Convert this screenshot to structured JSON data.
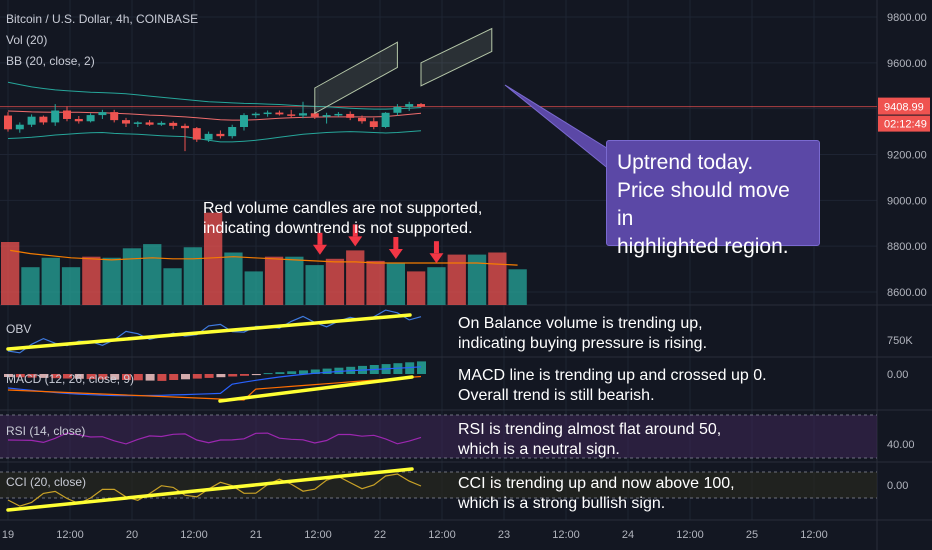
{
  "header": {
    "symbol": "Bitcoin / U.S. Dollar, 4h, COINBASE",
    "vol": "Vol (20)",
    "bb": "BB (20, close, 2)"
  },
  "price_badges": {
    "last": "9408.99",
    "countdown": "02:12:49"
  },
  "indicators": {
    "obv": "OBV",
    "macd": "MACD (12, 26, close, 9)",
    "rsi": "RSI (14, close)",
    "cci": "CCI (20, close)"
  },
  "annotations": {
    "volume_note": [
      "Red volume candles are not supported,",
      "indicating downtrend is not supported."
    ],
    "callout": [
      "Uptrend today.",
      "Price should move in",
      "highlighted region."
    ],
    "obv_note": [
      "On Balance volume is trending up,",
      "indicating buying pressure is rising."
    ],
    "macd_note": [
      "MACD line is trending up and crossed up 0.",
      "Overall trend is still bearish."
    ],
    "rsi_note": [
      "RSI is trending almost flat around 50,",
      "which is a neutral sign."
    ],
    "cci_note": [
      "CCI is trending up and now above 100,",
      "which is a strong bullish sign."
    ]
  },
  "colors": {
    "background": "#131722",
    "up": "#26a69a",
    "down": "#ef5350",
    "trendline": "#ffff33",
    "callout": "#5b48a6",
    "arrow": "#f23645",
    "bb_band": "#26a69a",
    "bb_basis": "#ef6c6c",
    "vol_ma": "#f57c00",
    "rsi_line": "#9c27b0",
    "rsi_band": "#3a2452",
    "cci_line": "#c9a227"
  },
  "chart_data": [
    {
      "type": "candlestick",
      "title": "Bitcoin / U.S. Dollar, 4h, COINBASE",
      "y_ticks": [
        "9800.00",
        "9600.00",
        "9400.00",
        "9200.00",
        "9000.00",
        "8800.00",
        "8600.00"
      ],
      "y_tick_values": [
        9800,
        9600,
        9400,
        9200,
        9000,
        8800,
        8600
      ],
      "ylim": [
        8520,
        9880
      ],
      "x_ticks": [
        "19",
        "12:00",
        "20",
        "12:00",
        "21",
        "12:00",
        "22",
        "12:00",
        "23",
        "12:00",
        "24",
        "12:00",
        "25",
        "12:00"
      ],
      "last_price": 9408.99,
      "candles": [
        {
          "o": 9370,
          "h": 9385,
          "l": 9300,
          "c": 9310
        },
        {
          "o": 9310,
          "h": 9340,
          "l": 9295,
          "c": 9330
        },
        {
          "o": 9330,
          "h": 9375,
          "l": 9320,
          "c": 9365
        },
        {
          "o": 9365,
          "h": 9370,
          "l": 9330,
          "c": 9340
        },
        {
          "o": 9340,
          "h": 9420,
          "l": 9325,
          "c": 9392
        },
        {
          "o": 9392,
          "h": 9410,
          "l": 9345,
          "c": 9355
        },
        {
          "o": 9355,
          "h": 9368,
          "l": 9335,
          "c": 9345
        },
        {
          "o": 9345,
          "h": 9380,
          "l": 9340,
          "c": 9372
        },
        {
          "o": 9372,
          "h": 9395,
          "l": 9355,
          "c": 9385
        },
        {
          "o": 9385,
          "h": 9395,
          "l": 9340,
          "c": 9350
        },
        {
          "o": 9350,
          "h": 9360,
          "l": 9320,
          "c": 9335
        },
        {
          "o": 9335,
          "h": 9345,
          "l": 9320,
          "c": 9340
        },
        {
          "o": 9340,
          "h": 9350,
          "l": 9325,
          "c": 9330
        },
        {
          "o": 9330,
          "h": 9345,
          "l": 9325,
          "c": 9338
        },
        {
          "o": 9338,
          "h": 9345,
          "l": 9310,
          "c": 9325
        },
        {
          "o": 9325,
          "h": 9335,
          "l": 9215,
          "c": 9315
        },
        {
          "o": 9315,
          "h": 9320,
          "l": 9255,
          "c": 9265
        },
        {
          "o": 9265,
          "h": 9300,
          "l": 9255,
          "c": 9290
        },
        {
          "o": 9290,
          "h": 9305,
          "l": 9270,
          "c": 9280
        },
        {
          "o": 9280,
          "h": 9330,
          "l": 9270,
          "c": 9320
        },
        {
          "o": 9320,
          "h": 9380,
          "l": 9305,
          "c": 9372
        },
        {
          "o": 9372,
          "h": 9385,
          "l": 9360,
          "c": 9378
        },
        {
          "o": 9378,
          "h": 9392,
          "l": 9365,
          "c": 9383
        },
        {
          "o": 9383,
          "h": 9392,
          "l": 9370,
          "c": 9375
        },
        {
          "o": 9375,
          "h": 9395,
          "l": 9360,
          "c": 9370
        },
        {
          "o": 9370,
          "h": 9430,
          "l": 9358,
          "c": 9380
        },
        {
          "o": 9380,
          "h": 9388,
          "l": 9355,
          "c": 9365
        },
        {
          "o": 9365,
          "h": 9382,
          "l": 9335,
          "c": 9372
        },
        {
          "o": 9372,
          "h": 9385,
          "l": 9365,
          "c": 9377
        },
        {
          "o": 9377,
          "h": 9388,
          "l": 9350,
          "c": 9360
        },
        {
          "o": 9360,
          "h": 9370,
          "l": 9335,
          "c": 9345
        },
        {
          "o": 9345,
          "h": 9360,
          "l": 9310,
          "c": 9320
        },
        {
          "o": 9320,
          "h": 9385,
          "l": 9315,
          "c": 9382
        },
        {
          "o": 9382,
          "h": 9420,
          "l": 9370,
          "c": 9408
        },
        {
          "o": 9408,
          "h": 9430,
          "l": 9390,
          "c": 9420
        },
        {
          "o": 9420,
          "h": 9425,
          "l": 9405,
          "c": 9409
        }
      ],
      "bb_upper": [
        9515,
        9505,
        9495,
        9488,
        9482,
        9478,
        9475,
        9472,
        9470,
        9468,
        9465,
        9460,
        9455,
        9450,
        9445,
        9440,
        9435,
        9430,
        9428,
        9425,
        9423,
        9422,
        9420,
        9418,
        9415,
        9412,
        9410,
        9408,
        9405,
        9402,
        9400,
        9398,
        9398,
        9400,
        9402,
        9405
      ],
      "bb_basis": [
        9390,
        9388,
        9386,
        9385,
        9384,
        9384,
        9384,
        9383,
        9382,
        9380,
        9378,
        9375,
        9372,
        9370,
        9367,
        9364,
        9360,
        9356,
        9352,
        9350,
        9350,
        9352,
        9355,
        9358,
        9360,
        9362,
        9363,
        9364,
        9364,
        9364,
        9364,
        9364,
        9366,
        9370,
        9375,
        9380
      ],
      "bb_lower": [
        9270,
        9272,
        9275,
        9280,
        9285,
        9288,
        9292,
        9295,
        9296,
        9292,
        9290,
        9288,
        9285,
        9282,
        9280,
        9278,
        9270,
        9262,
        9255,
        9255,
        9258,
        9262,
        9268,
        9275,
        9282,
        9288,
        9292,
        9296,
        9298,
        9300,
        9298,
        9296,
        9294,
        9296,
        9300,
        9304
      ],
      "projection_boxes": [
        {
          "x_index": [
            26,
            33
          ],
          "price": [
            9380,
            9490
          ],
          "rise": 200
        },
        {
          "x_index": [
            35,
            41
          ],
          "price": [
            9500,
            9600
          ],
          "rise": 150
        }
      ]
    },
    {
      "type": "bar",
      "title": "Vol (20)",
      "volume_up": [
        false,
        true,
        true,
        true,
        false,
        true,
        true,
        true,
        true,
        true,
        false,
        true,
        true,
        false,
        true,
        true,
        false,
        false,
        false,
        true,
        false,
        true,
        false,
        true,
        false,
        true
      ],
      "volume": [
        60,
        36,
        45,
        36,
        46,
        45,
        54,
        58,
        35,
        55,
        88,
        50,
        32,
        46,
        46,
        38,
        44,
        52,
        42,
        40,
        32,
        36,
        48,
        48,
        50,
        34
      ],
      "volume_ma": [
        52,
        49,
        47,
        45,
        44,
        43,
        44,
        45,
        44,
        44,
        45,
        46,
        45,
        44,
        43,
        42,
        41,
        41,
        40,
        40,
        40,
        40,
        40,
        40,
        39,
        38
      ],
      "red_arrows_at_bar": [
        16,
        17,
        19,
        21
      ]
    },
    {
      "type": "line",
      "title": "OBV",
      "y_ticks": [
        "750K"
      ],
      "trend": "up"
    },
    {
      "type": "line",
      "title": "MACD (12, 26, close, 9)",
      "y_ticks": [
        "0.00"
      ],
      "trend": "up"
    },
    {
      "type": "line",
      "title": "RSI (14, close)",
      "y_ticks": [
        "40.00"
      ],
      "trend": "flat"
    },
    {
      "type": "line",
      "title": "CCI (20, close)",
      "y_ticks": [
        "0.00"
      ],
      "trend": "up"
    }
  ]
}
